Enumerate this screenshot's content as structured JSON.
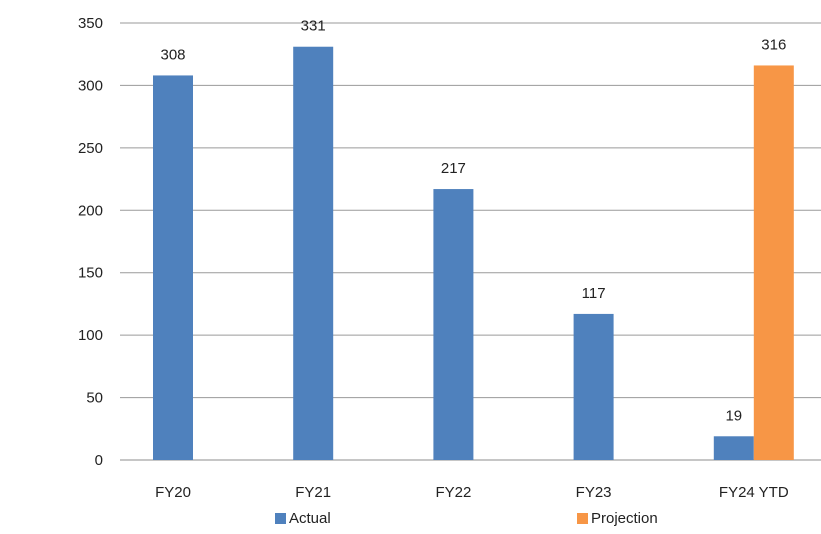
{
  "chart_data": {
    "type": "bar",
    "categories": [
      "FY20",
      "FY21",
      "FY22",
      "FY23",
      "FY24 YTD"
    ],
    "series": [
      {
        "name": "Actual",
        "values": [
          308,
          331,
          217,
          117,
          19
        ],
        "color": "#4F81BD"
      },
      {
        "name": "Projection",
        "values": [
          null,
          null,
          null,
          null,
          316
        ],
        "color": "#F79646"
      }
    ],
    "ylim": [
      0,
      350
    ],
    "yticks": [
      0,
      50,
      100,
      150,
      200,
      250,
      300,
      350
    ],
    "grid": true,
    "legend_position": "bottom",
    "title": "",
    "xlabel": "",
    "ylabel": ""
  }
}
